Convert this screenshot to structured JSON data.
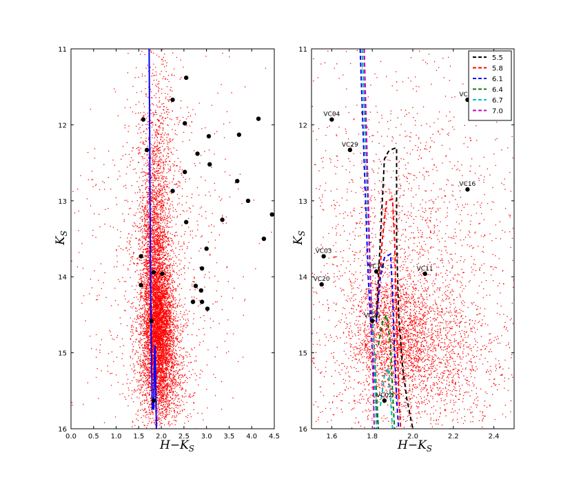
{
  "chart_data": [
    {
      "type": "scatter",
      "xlabel": "H−K_S",
      "ylabel": "K_S",
      "xlim": [
        0.0,
        4.5
      ],
      "ylim": [
        16,
        11
      ],
      "xticks": [
        "0.0",
        "0.5",
        "1.0",
        "1.5",
        "2.0",
        "2.5",
        "3.0",
        "3.5",
        "4.0",
        "4.5"
      ],
      "yticks": [
        "11",
        "12",
        "13",
        "14",
        "15",
        "16"
      ],
      "grid": false,
      "field_stars": {
        "color": "#ff0000",
        "description_count": 9000,
        "components": [
          {
            "center_x": 1.95,
            "center_y": 14.7,
            "sd_x": 0.17,
            "sd_y": 0.45,
            "weight": 0.38
          },
          {
            "center_x": 1.85,
            "center_y": 13.9,
            "sd_x": 0.15,
            "sd_y": 0.7,
            "weight": 0.22
          },
          {
            "center_x": 1.9,
            "center_y": 13.0,
            "sd_x": 0.25,
            "sd_y": 1.1,
            "weight": 0.15
          },
          {
            "center_x": 2.0,
            "center_y": 15.3,
            "sd_x": 0.3,
            "sd_y": 0.4,
            "weight": 0.15
          },
          {
            "center_x": 2.0,
            "center_y": 14.0,
            "sd_x": 0.9,
            "sd_y": 1.3,
            "weight": 0.1
          }
        ]
      },
      "isochrone": {
        "color": "#0000ff",
        "segments": [
          [
            [
              1.73,
              11.0
            ],
            [
              1.74,
              12.0
            ],
            [
              1.75,
              13.0
            ],
            [
              1.76,
              14.0
            ],
            [
              1.78,
              15.0
            ],
            [
              1.8,
              15.75
            ]
          ],
          [
            [
              1.83,
              15.75
            ],
            [
              1.85,
              15.0
            ],
            [
              1.86,
              14.9
            ],
            [
              1.87,
              15.2
            ],
            [
              1.89,
              16.0
            ]
          ]
        ]
      },
      "stars": [
        {
          "x": 2.55,
          "y": 11.38
        },
        {
          "x": 2.25,
          "y": 11.67
        },
        {
          "x": 1.6,
          "y": 11.93
        },
        {
          "x": 2.52,
          "y": 11.98
        },
        {
          "x": 4.15,
          "y": 11.92
        },
        {
          "x": 3.72,
          "y": 12.13
        },
        {
          "x": 3.05,
          "y": 12.15
        },
        {
          "x": 1.68,
          "y": 12.33
        },
        {
          "x": 2.8,
          "y": 12.38
        },
        {
          "x": 3.07,
          "y": 12.52
        },
        {
          "x": 2.52,
          "y": 12.62
        },
        {
          "x": 3.68,
          "y": 12.74
        },
        {
          "x": 2.25,
          "y": 12.87
        },
        {
          "x": 3.92,
          "y": 13.0
        },
        {
          "x": 3.35,
          "y": 13.25
        },
        {
          "x": 2.55,
          "y": 13.28
        },
        {
          "x": 4.45,
          "y": 13.18
        },
        {
          "x": 4.27,
          "y": 13.5
        },
        {
          "x": 3.0,
          "y": 13.63
        },
        {
          "x": 1.55,
          "y": 13.73
        },
        {
          "x": 2.9,
          "y": 13.89
        },
        {
          "x": 1.83,
          "y": 13.94
        },
        {
          "x": 2.02,
          "y": 13.96
        },
        {
          "x": 1.55,
          "y": 14.11
        },
        {
          "x": 2.76,
          "y": 14.12
        },
        {
          "x": 2.88,
          "y": 14.18
        },
        {
          "x": 2.7,
          "y": 14.33
        },
        {
          "x": 2.9,
          "y": 14.33
        },
        {
          "x": 3.02,
          "y": 14.42
        },
        {
          "x": 1.78,
          "y": 14.58
        },
        {
          "x": 1.83,
          "y": 15.63
        }
      ]
    },
    {
      "type": "scatter",
      "xlabel": "H−K_S",
      "ylabel": "K_S",
      "xlim": [
        1.5,
        2.5
      ],
      "ylim": [
        16,
        11
      ],
      "xticks": [
        "1.6",
        "1.8",
        "2.0",
        "2.2",
        "2.4"
      ],
      "yticks": [
        "11",
        "12",
        "13",
        "14",
        "15",
        "16"
      ],
      "grid": false,
      "legend_position": "top-right",
      "field_stars": {
        "color": "#ff0000",
        "description_count": 5000,
        "components": [
          {
            "center_x": 1.9,
            "center_y": 14.75,
            "sd_x": 0.1,
            "sd_y": 0.4,
            "weight": 0.28
          },
          {
            "center_x": 2.05,
            "center_y": 14.9,
            "sd_x": 0.18,
            "sd_y": 0.45,
            "weight": 0.25
          },
          {
            "center_x": 1.95,
            "center_y": 13.8,
            "sd_x": 0.25,
            "sd_y": 0.9,
            "weight": 0.2
          },
          {
            "center_x": 2.0,
            "center_y": 13.2,
            "sd_x": 0.35,
            "sd_y": 1.5,
            "weight": 0.17
          },
          {
            "center_x": 2.0,
            "center_y": 15.5,
            "sd_x": 0.3,
            "sd_y": 0.35,
            "weight": 0.1
          }
        ]
      },
      "series": [
        {
          "name": "5.5",
          "color": "#000000",
          "points": [
            [
              1.75,
              11.0
            ],
            [
              1.79,
              14.0
            ],
            [
              1.81,
              15.0
            ],
            [
              1.83,
              16.0
            ],
            [
              null,
              null
            ],
            [
              1.82,
              14.55
            ],
            [
              1.86,
              12.45
            ],
            [
              1.88,
              12.35
            ],
            [
              1.9,
              12.32
            ],
            [
              1.92,
              12.3
            ],
            [
              1.92,
              13.5
            ],
            [
              1.93,
              14.5
            ],
            [
              1.95,
              15.2
            ],
            [
              1.97,
              15.6
            ],
            [
              2.0,
              16.0
            ]
          ]
        },
        {
          "name": "5.8",
          "color": "#ff0000",
          "points": [
            [
              1.76,
              11.0
            ],
            [
              1.79,
              14.0
            ],
            [
              1.82,
              15.5
            ],
            [
              1.83,
              16.0
            ],
            [
              null,
              null
            ],
            [
              1.82,
              14.5
            ],
            [
              1.85,
              13.5
            ],
            [
              1.87,
              13.0
            ],
            [
              1.9,
              12.98
            ],
            [
              1.91,
              13.5
            ],
            [
              1.92,
              14.5
            ],
            [
              1.93,
              15.5
            ],
            [
              1.94,
              16.0
            ]
          ]
        },
        {
          "name": "6.1",
          "color": "#0000ff",
          "points": [
            [
              1.74,
              11.0
            ],
            [
              1.78,
              14.0
            ],
            [
              1.8,
              15.0
            ],
            [
              1.83,
              16.0
            ],
            [
              null,
              null
            ],
            [
              1.82,
              14.6
            ],
            [
              1.84,
              14.0
            ],
            [
              1.86,
              13.75
            ],
            [
              1.89,
              13.7
            ],
            [
              1.9,
              14.2
            ],
            [
              1.91,
              15.0
            ],
            [
              1.92,
              15.6
            ],
            [
              1.93,
              16.0
            ]
          ]
        },
        {
          "name": "6.4",
          "color": "#008000",
          "points": [
            [
              1.75,
              11.0
            ],
            [
              1.79,
              14.0
            ],
            [
              1.81,
              15.0
            ],
            [
              1.83,
              16.0
            ],
            [
              null,
              null
            ],
            [
              1.83,
              14.9
            ],
            [
              1.85,
              14.6
            ],
            [
              1.87,
              14.5
            ],
            [
              1.89,
              14.9
            ],
            [
              1.9,
              15.5
            ],
            [
              1.91,
              16.0
            ]
          ]
        },
        {
          "name": "6.7",
          "color": "#00bfbf",
          "points": [
            [
              1.75,
              11.0
            ],
            [
              1.79,
              14.0
            ],
            [
              1.81,
              15.0
            ],
            [
              1.82,
              16.0
            ],
            [
              null,
              null
            ],
            [
              1.84,
              15.7
            ],
            [
              1.86,
              15.3
            ],
            [
              1.88,
              15.2
            ],
            [
              1.89,
              15.6
            ],
            [
              1.9,
              16.0
            ]
          ]
        },
        {
          "name": "7.0",
          "color": "#bf00bf",
          "points": [
            [
              1.76,
              11.0
            ],
            [
              1.79,
              14.0
            ],
            [
              1.8,
              15.0
            ],
            [
              1.81,
              16.0
            ]
          ]
        }
      ],
      "labeled_stars": [
        {
          "name": "VC07",
          "x": 2.27,
          "y": 11.67
        },
        {
          "name": "VC04",
          "x": 1.6,
          "y": 11.93
        },
        {
          "name": "VC29",
          "x": 1.69,
          "y": 12.33
        },
        {
          "name": "VC16",
          "x": 2.27,
          "y": 12.85
        },
        {
          "name": "VC03",
          "x": 1.56,
          "y": 13.73
        },
        {
          "name": "VC18",
          "x": 1.82,
          "y": 13.93
        },
        {
          "name": "VC11",
          "x": 2.06,
          "y": 13.96
        },
        {
          "name": "VC20",
          "x": 1.55,
          "y": 14.1
        },
        {
          "name": "VC26",
          "x": 1.8,
          "y": 14.58
        },
        {
          "name": "VC02",
          "x": 1.86,
          "y": 15.63
        }
      ]
    }
  ]
}
